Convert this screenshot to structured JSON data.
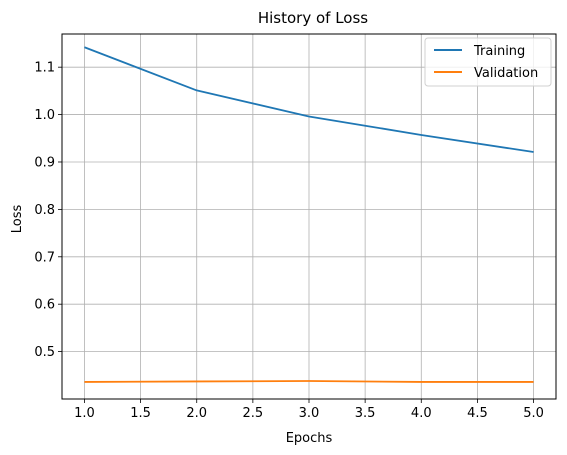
{
  "chart_data": {
    "type": "line",
    "title": "History of Loss",
    "xlabel": "Epochs",
    "ylabel": "Loss",
    "xlim": [
      0.8,
      5.2
    ],
    "ylim": [
      0.4,
      1.17
    ],
    "xticks": [
      1.0,
      1.5,
      2.0,
      2.5,
      3.0,
      3.5,
      4.0,
      4.5,
      5.0
    ],
    "xtick_labels": [
      "1.0",
      "1.5",
      "2.0",
      "2.5",
      "3.0",
      "3.5",
      "4.0",
      "4.5",
      "5.0"
    ],
    "yticks": [
      0.5,
      0.6,
      0.7,
      0.8,
      0.9,
      1.0,
      1.1
    ],
    "ytick_labels": [
      "0.5",
      "0.6",
      "0.7",
      "0.8",
      "0.9",
      "1.0",
      "1.1"
    ],
    "grid": true,
    "legend_position": "top-right",
    "x": [
      1,
      2,
      3,
      4,
      5
    ],
    "series": [
      {
        "name": "Training",
        "color": "#1f77b4",
        "values": [
          1.142,
          1.051,
          0.996,
          0.957,
          0.921
        ]
      },
      {
        "name": "Validation",
        "color": "#ff7f0e",
        "values": [
          0.436,
          0.437,
          0.438,
          0.436,
          0.436
        ]
      }
    ]
  }
}
